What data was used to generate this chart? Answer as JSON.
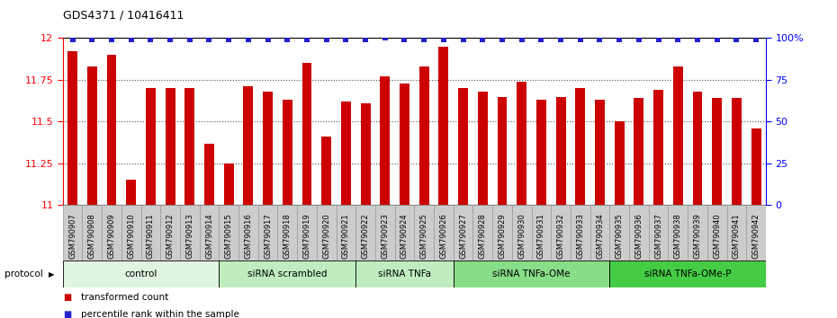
{
  "title": "GDS4371 / 10416411",
  "samples": [
    "GSM790907",
    "GSM790908",
    "GSM790909",
    "GSM790910",
    "GSM790911",
    "GSM790912",
    "GSM790913",
    "GSM790914",
    "GSM790915",
    "GSM790916",
    "GSM790917",
    "GSM790918",
    "GSM790919",
    "GSM790920",
    "GSM790921",
    "GSM790922",
    "GSM790923",
    "GSM790924",
    "GSM790925",
    "GSM790926",
    "GSM790927",
    "GSM790928",
    "GSM790929",
    "GSM790930",
    "GSM790931",
    "GSM790932",
    "GSM790933",
    "GSM790934",
    "GSM790935",
    "GSM790936",
    "GSM790937",
    "GSM790938",
    "GSM790939",
    "GSM790940",
    "GSM790941",
    "GSM790942"
  ],
  "bar_values": [
    11.92,
    11.83,
    11.9,
    11.15,
    11.7,
    11.7,
    11.7,
    11.37,
    11.25,
    11.71,
    11.68,
    11.63,
    11.85,
    11.41,
    11.62,
    11.61,
    11.77,
    11.73,
    11.83,
    11.95,
    11.7,
    11.68,
    11.65,
    11.74,
    11.63,
    11.65,
    11.7,
    11.63,
    11.5,
    11.64,
    11.69,
    11.83,
    11.68,
    11.64,
    11.64,
    11.46
  ],
  "percentile_values": [
    99,
    99,
    99,
    99,
    99,
    99,
    99,
    99,
    99,
    99,
    99,
    99,
    99,
    99,
    99,
    99,
    100,
    99,
    99,
    99,
    99,
    99,
    99,
    99,
    99,
    99,
    99,
    99,
    99,
    99,
    99,
    99,
    99,
    99,
    99,
    99
  ],
  "ylim_left": [
    11.0,
    12.0
  ],
  "ylim_right": [
    0,
    100
  ],
  "yticks_left": [
    11.0,
    11.25,
    11.5,
    11.75,
    12.0
  ],
  "yticks_left_labels": [
    "11",
    "11.25",
    "11.5",
    "11.75",
    "12"
  ],
  "yticks_right": [
    0,
    25,
    50,
    75,
    100
  ],
  "yticks_right_labels": [
    "0",
    "25",
    "50",
    "75",
    "100%"
  ],
  "bar_color": "#cc0000",
  "percentile_color": "#2222cc",
  "dotted_line_color": "#555555",
  "dotted_line_levels": [
    11.25,
    11.5,
    11.75
  ],
  "groups": [
    {
      "label": "control",
      "start": 0,
      "end": 7,
      "color": "#e0f5e0"
    },
    {
      "label": "siRNA scrambled",
      "start": 8,
      "end": 14,
      "color": "#c0edc0"
    },
    {
      "label": "siRNA TNFa",
      "start": 15,
      "end": 19,
      "color": "#c0edc0"
    },
    {
      "label": "siRNA TNFa-OMe",
      "start": 20,
      "end": 27,
      "color": "#88dd88"
    },
    {
      "label": "siRNA TNFa-OMe-P",
      "start": 28,
      "end": 35,
      "color": "#44cc44"
    }
  ],
  "legend_items": [
    {
      "label": "transformed count",
      "color": "#cc0000"
    },
    {
      "label": "percentile rank within the sample",
      "color": "#2222cc"
    }
  ],
  "protocol_label": "protocol",
  "tick_bg_color": "#cccccc",
  "plot_bg_color": "#ffffff",
  "bar_width": 0.5
}
